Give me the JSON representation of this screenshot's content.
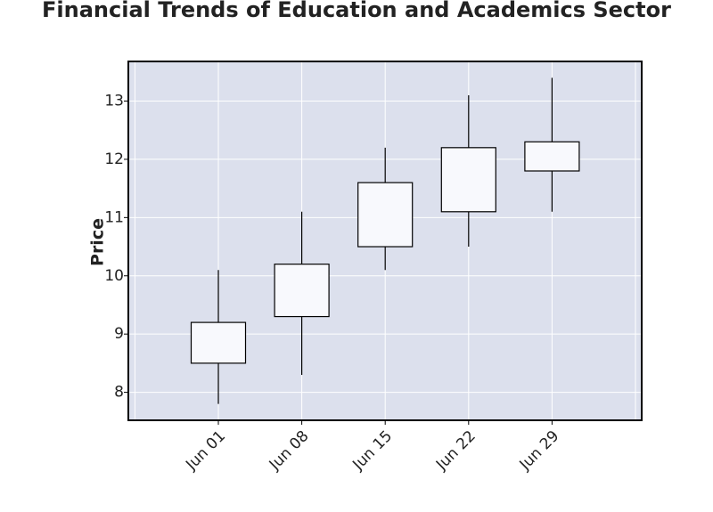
{
  "chart_data": {
    "type": "candlestick",
    "title": "Financial Trends of Education and Academics Sector",
    "xlabel": "",
    "ylabel": "Price",
    "categories": [
      "Jun 01",
      "Jun 08",
      "Jun 15",
      "Jun 22",
      "Jun 29"
    ],
    "candles": [
      {
        "date": "Jun 01",
        "open": 8.5,
        "high": 10.1,
        "low": 7.8,
        "close": 9.2
      },
      {
        "date": "Jun 08",
        "open": 9.3,
        "high": 11.1,
        "low": 8.3,
        "close": 10.2
      },
      {
        "date": "Jun 15",
        "open": 10.5,
        "high": 12.2,
        "low": 10.1,
        "close": 11.6
      },
      {
        "date": "Jun 22",
        "open": 11.1,
        "high": 13.1,
        "low": 10.5,
        "close": 12.2
      },
      {
        "date": "Jun 29",
        "open": 11.8,
        "high": 13.4,
        "low": 11.1,
        "close": 12.3
      }
    ],
    "y_ticks": [
      8,
      9,
      10,
      11,
      12,
      13
    ],
    "ylim": [
      7.52,
      13.68
    ],
    "grid": true,
    "colors": {
      "plot_background": "#dce0ed",
      "grid": "#ffffff",
      "candle_body": "#f8f9fd",
      "candle_edge": "#000000"
    }
  }
}
